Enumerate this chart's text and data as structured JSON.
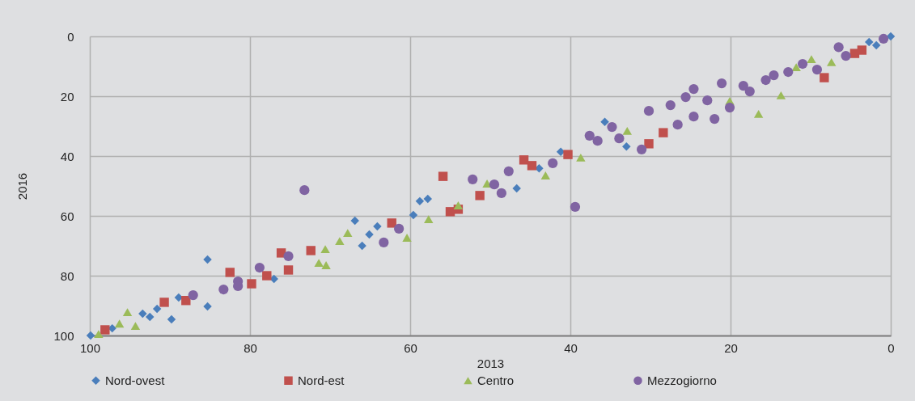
{
  "chart_data": {
    "type": "scatter",
    "xlabel": "2013",
    "ylabel": "2016",
    "xlim": [
      100,
      0
    ],
    "ylim": [
      100,
      0
    ],
    "xticks": [
      100,
      80,
      60,
      40,
      20,
      0
    ],
    "yticks": [
      0,
      20,
      40,
      60,
      80,
      100
    ],
    "grid": true,
    "legend": "bottom",
    "series": [
      {
        "name": "Nord-ovest",
        "color": "#4a7ebb",
        "marker": "diamond",
        "x": [
          99.9,
          97.2,
          93.4,
          92.5,
          91.6,
          88.9,
          89.8,
          85.3,
          85.3,
          77,
          66.9,
          64.1,
          65.1,
          66,
          59.6,
          58.8,
          57.8,
          46.7,
          43.9,
          41.2,
          35.7,
          33,
          2.7,
          1.8,
          0
        ],
        "values": [
          100,
          97.6,
          92.7,
          93.8,
          91.1,
          87.3,
          94.6,
          74.6,
          90.3,
          81.1,
          61.6,
          63.5,
          66.2,
          70,
          59.7,
          55.1,
          54.3,
          50.8,
          44.1,
          38.6,
          28.6,
          36.8,
          1.9,
          3,
          0
        ]
      },
      {
        "name": "Nord-est",
        "color": "#c0504d",
        "marker": "square",
        "x": [
          98.1,
          90.7,
          88,
          82.5,
          79.8,
          77.9,
          76.1,
          75.2,
          72.4,
          62.3,
          55.9,
          55,
          54,
          51.3,
          45.8,
          44.8,
          40.3,
          30.2,
          28.4,
          8.3,
          4.5,
          3.6
        ],
        "values": [
          98.1,
          88.9,
          88.3,
          78.9,
          82.7,
          80,
          72.4,
          78.1,
          71.6,
          62.4,
          46.8,
          58.6,
          57.8,
          53.2,
          41.3,
          43.2,
          39.5,
          35.9,
          32.2,
          13.8,
          5.7,
          4.6
        ]
      },
      {
        "name": "Centro",
        "color": "#9bbb59",
        "marker": "triangle",
        "x": [
          98.9,
          96.3,
          95.3,
          94.3,
          70.6,
          71.4,
          70.5,
          68.8,
          67.8,
          60.4,
          57.7,
          54,
          50.4,
          43.1,
          38.7,
          32.9,
          20.1,
          16.5,
          13.7,
          11.8,
          9.9,
          7.4
        ],
        "values": [
          99.5,
          96,
          92.2,
          96.8,
          71.1,
          75.7,
          76.5,
          68.4,
          65.7,
          67.3,
          61.1,
          56.5,
          49.2,
          46.5,
          40.5,
          31.6,
          21.6,
          25.9,
          19.7,
          10.3,
          7.6,
          8.6
        ]
      },
      {
        "name": "Mezzogiorno",
        "color": "#8064a2",
        "marker": "circle",
        "x": [
          87.1,
          83.3,
          81.5,
          81.5,
          78.8,
          75.2,
          73.2,
          63.3,
          61.4,
          52.2,
          49.5,
          48.6,
          47.7,
          42.2,
          39.4,
          37.6,
          36.6,
          34.8,
          33.9,
          31.1,
          30.2,
          27.5,
          26.6,
          25.6,
          24.6,
          24.6,
          22.9,
          22,
          21.1,
          20.1,
          18.4,
          17.6,
          15.6,
          14.6,
          12.8,
          11,
          9.2,
          6.5,
          5.6,
          0.9
        ],
        "values": [
          86.5,
          84.6,
          81.9,
          83.5,
          77.3,
          73.5,
          51.4,
          68.9,
          64.3,
          47.8,
          49.5,
          52.4,
          45.1,
          42.4,
          57,
          33.2,
          34.9,
          30.3,
          34.1,
          37.8,
          24.9,
          23,
          29.5,
          20.3,
          17.6,
          26.8,
          21.4,
          27.6,
          15.7,
          23.8,
          16.5,
          18.4,
          14.6,
          13,
          11.9,
          9.2,
          11.1,
          3.6,
          6.5,
          0.8
        ]
      }
    ]
  }
}
